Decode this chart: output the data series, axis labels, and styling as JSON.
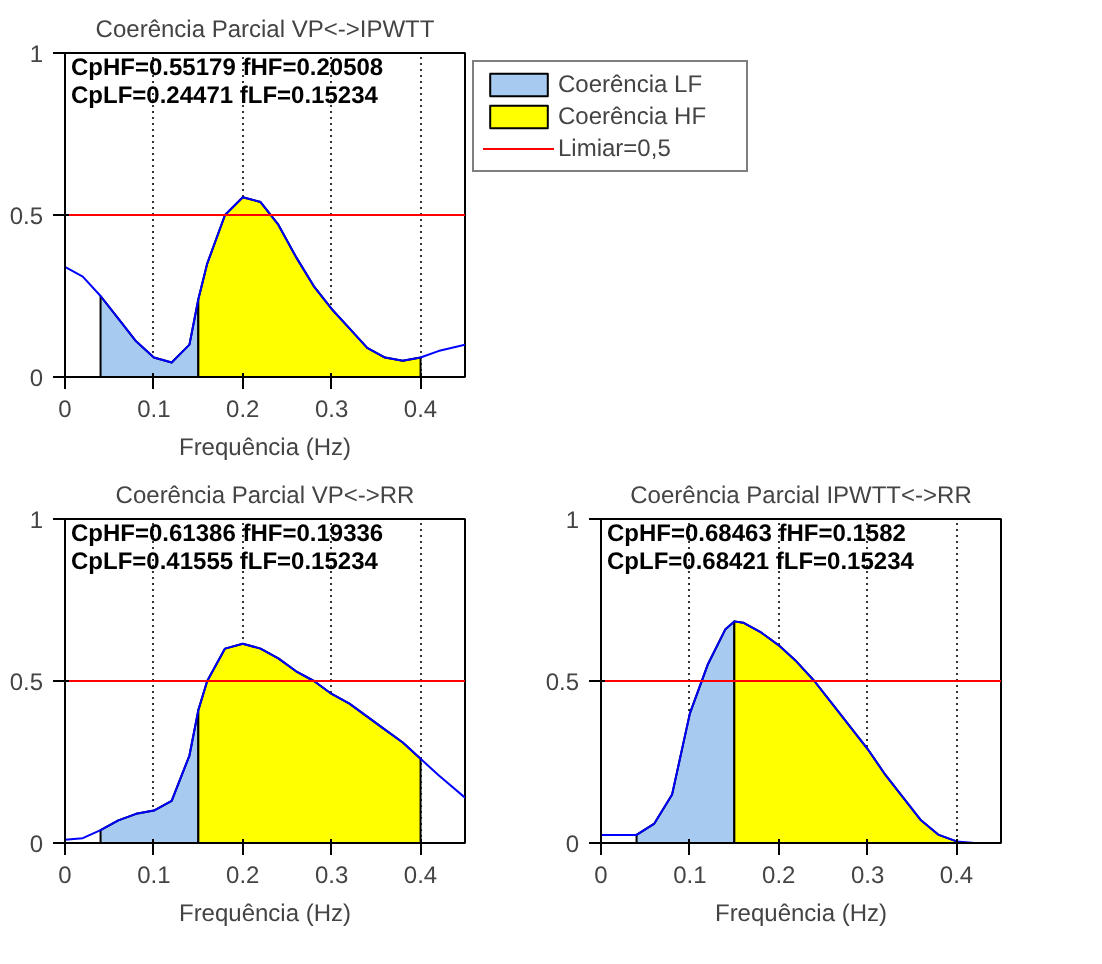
{
  "chart_data": [
    {
      "type": "area",
      "title": "Coerência Parcial VP<->IPWTT",
      "xlabel": "Frequência (Hz)",
      "xlim": [
        0,
        0.45
      ],
      "xticks": [
        0,
        0.1,
        0.2,
        0.3,
        0.4
      ],
      "ylim": [
        0,
        1
      ],
      "yticks": [
        0,
        0.5,
        1
      ],
      "grid": "x",
      "legend": "right",
      "annotations": [
        "CpHF=0.55179    fHF=0.20508",
        "CpLF=0.24471   fLF=0.15234"
      ],
      "ref_lines": [
        {
          "axis": "y",
          "value": 0.5,
          "label": "Limiar=0,5",
          "color": "#ff0000"
        }
      ],
      "series": [
        {
          "type": "line",
          "color": "#0000ff",
          "x": [
            0,
            0.02,
            0.04,
            0.06,
            0.08,
            0.1,
            0.12,
            0.14,
            0.15,
            0.16,
            0.18,
            0.2,
            0.22,
            0.24,
            0.26,
            0.28,
            0.3,
            0.32,
            0.34,
            0.36,
            0.38,
            0.4,
            0.42,
            0.45
          ],
          "values": [
            0.34,
            0.31,
            0.25,
            0.18,
            0.11,
            0.06,
            0.045,
            0.1,
            0.24,
            0.35,
            0.5,
            0.555,
            0.54,
            0.47,
            0.37,
            0.28,
            0.21,
            0.15,
            0.09,
            0.06,
            0.05,
            0.06,
            0.08,
            0.1
          ]
        },
        {
          "name": "Coerência LF",
          "color": "#a6caf0",
          "x": [
            0.04,
            0.06,
            0.08,
            0.1,
            0.12,
            0.14,
            0.15
          ],
          "values": [
            0.25,
            0.18,
            0.11,
            0.06,
            0.045,
            0.1,
            0.24
          ]
        },
        {
          "name": "Coerência HF",
          "color": "#ffff00",
          "x": [
            0.15,
            0.16,
            0.18,
            0.2,
            0.22,
            0.24,
            0.26,
            0.28,
            0.3,
            0.32,
            0.34,
            0.36,
            0.38,
            0.4
          ],
          "values": [
            0.24,
            0.35,
            0.5,
            0.555,
            0.54,
            0.47,
            0.37,
            0.28,
            0.21,
            0.15,
            0.09,
            0.06,
            0.05,
            0.06
          ]
        }
      ]
    },
    {
      "type": "area",
      "title": "Coerência Parcial VP<->RR",
      "xlabel": "Frequência (Hz)",
      "xlim": [
        0,
        0.45
      ],
      "xticks": [
        0,
        0.1,
        0.2,
        0.3,
        0.4
      ],
      "ylim": [
        0,
        1
      ],
      "yticks": [
        0,
        0.5,
        1
      ],
      "grid": "x",
      "annotations": [
        "CpHF=0.61386    fHF=0.19336",
        "CpLF=0.41555   fLF=0.15234"
      ],
      "ref_lines": [
        {
          "axis": "y",
          "value": 0.5,
          "color": "#ff0000"
        }
      ],
      "series": [
        {
          "type": "line",
          "color": "#0000ff",
          "x": [
            0,
            0.02,
            0.04,
            0.06,
            0.08,
            0.1,
            0.12,
            0.14,
            0.15,
            0.16,
            0.18,
            0.2,
            0.22,
            0.24,
            0.26,
            0.28,
            0.3,
            0.32,
            0.34,
            0.36,
            0.38,
            0.4,
            0.42,
            0.45
          ],
          "values": [
            0.01,
            0.015,
            0.04,
            0.07,
            0.09,
            0.1,
            0.13,
            0.27,
            0.41,
            0.5,
            0.6,
            0.615,
            0.6,
            0.57,
            0.53,
            0.5,
            0.46,
            0.43,
            0.39,
            0.35,
            0.31,
            0.26,
            0.21,
            0.14
          ]
        },
        {
          "color": "#a6caf0",
          "x": [
            0.04,
            0.06,
            0.08,
            0.1,
            0.12,
            0.14,
            0.15
          ],
          "values": [
            0.04,
            0.07,
            0.09,
            0.1,
            0.13,
            0.27,
            0.41
          ]
        },
        {
          "color": "#ffff00",
          "x": [
            0.15,
            0.16,
            0.18,
            0.2,
            0.22,
            0.24,
            0.26,
            0.28,
            0.3,
            0.32,
            0.34,
            0.36,
            0.38,
            0.4
          ],
          "values": [
            0.41,
            0.5,
            0.6,
            0.615,
            0.6,
            0.57,
            0.53,
            0.5,
            0.46,
            0.43,
            0.39,
            0.35,
            0.31,
            0.26
          ]
        }
      ]
    },
    {
      "type": "area",
      "title": "Coerência Parcial IPWTT<->RR",
      "xlabel": "Frequência (Hz)",
      "xlim": [
        0,
        0.45
      ],
      "xticks": [
        0,
        0.1,
        0.2,
        0.3,
        0.4
      ],
      "ylim": [
        0,
        1
      ],
      "yticks": [
        0,
        0.5,
        1
      ],
      "grid": "x",
      "annotations": [
        "CpHF=0.68463    fHF=0.1582",
        "CpLF=0.68421   fLF=0.15234"
      ],
      "ref_lines": [
        {
          "axis": "y",
          "value": 0.5,
          "color": "#ff0000"
        }
      ],
      "series": [
        {
          "type": "line",
          "color": "#0000ff",
          "x": [
            0,
            0.02,
            0.04,
            0.06,
            0.08,
            0.1,
            0.12,
            0.14,
            0.15,
            0.16,
            0.18,
            0.2,
            0.22,
            0.24,
            0.26,
            0.28,
            0.3,
            0.32,
            0.34,
            0.36,
            0.38,
            0.4,
            0.42,
            0.45
          ],
          "values": [
            0.025,
            0.025,
            0.025,
            0.06,
            0.15,
            0.4,
            0.55,
            0.66,
            0.684,
            0.68,
            0.65,
            0.61,
            0.56,
            0.5,
            0.43,
            0.36,
            0.29,
            0.21,
            0.14,
            0.07,
            0.025,
            0.005,
            0,
            0
          ]
        },
        {
          "color": "#a6caf0",
          "x": [
            0.04,
            0.06,
            0.08,
            0.1,
            0.12,
            0.14,
            0.15
          ],
          "values": [
            0.025,
            0.06,
            0.15,
            0.4,
            0.55,
            0.66,
            0.684
          ]
        },
        {
          "color": "#ffff00",
          "x": [
            0.15,
            0.16,
            0.18,
            0.2,
            0.22,
            0.24,
            0.26,
            0.28,
            0.3,
            0.32,
            0.34,
            0.36,
            0.38,
            0.4
          ],
          "values": [
            0.684,
            0.68,
            0.65,
            0.61,
            0.56,
            0.5,
            0.43,
            0.36,
            0.29,
            0.21,
            0.14,
            0.07,
            0.025,
            0.005
          ]
        }
      ]
    }
  ]
}
